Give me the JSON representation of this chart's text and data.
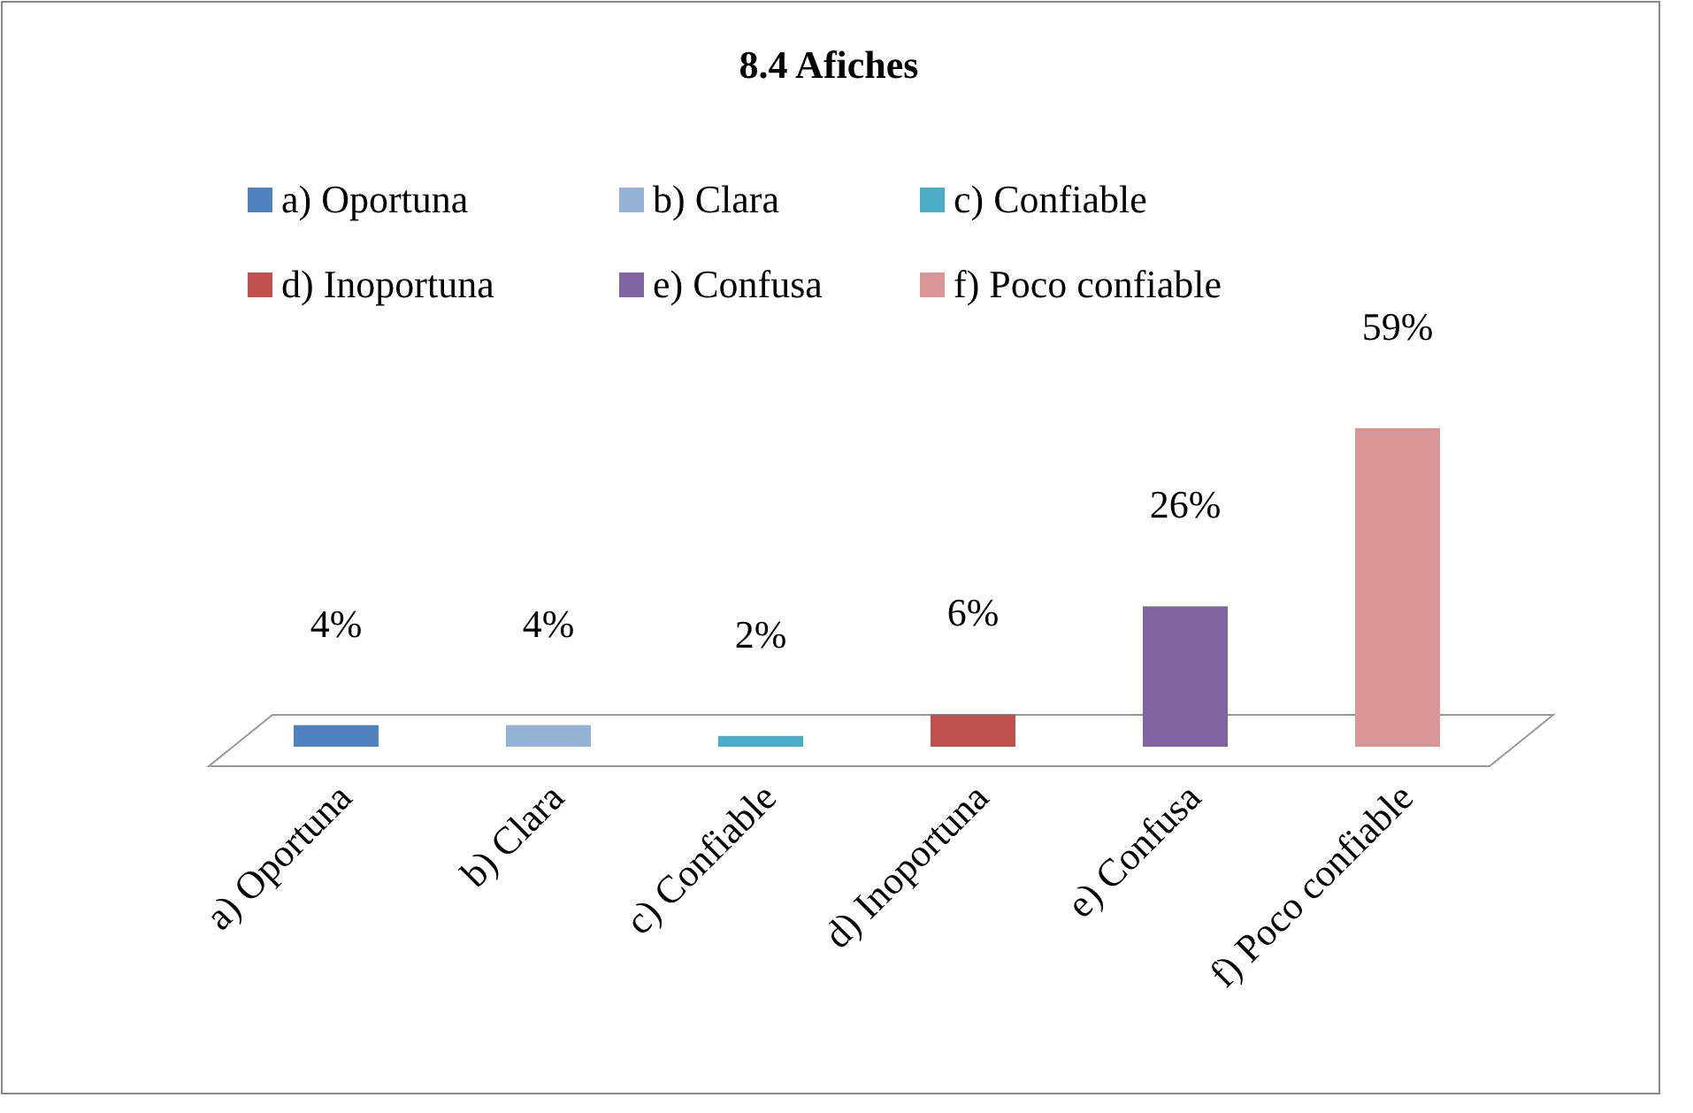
{
  "chart_data": {
    "type": "bar",
    "title": "8.4 Afiches",
    "stacked": true,
    "categories": [
      "a) Oportuna",
      "b) Clara",
      "c) Confiable",
      "d) Inoportuna",
      "e) Confusa",
      "f) Poco confiable"
    ],
    "series": [
      {
        "name": "a) Oportuna",
        "color": "#4f81bd",
        "values": [
          4,
          null,
          null,
          null,
          null,
          null
        ],
        "value_labels": [
          "4%",
          null,
          null,
          null,
          null,
          null
        ]
      },
      {
        "name": "b) Clara",
        "color": "#95b3d7",
        "values": [
          null,
          4,
          null,
          null,
          null,
          null
        ],
        "value_labels": [
          null,
          "4%",
          null,
          null,
          null,
          null
        ]
      },
      {
        "name": "c) Confiable",
        "color": "#4bacc6",
        "values": [
          null,
          null,
          2,
          null,
          null,
          null
        ],
        "value_labels": [
          null,
          null,
          "2%",
          null,
          null,
          null
        ]
      },
      {
        "name": "d) Inoportuna",
        "color": "#c0504d",
        "values": [
          null,
          null,
          null,
          6,
          null,
          null
        ],
        "value_labels": [
          null,
          null,
          null,
          "6%",
          null,
          null
        ]
      },
      {
        "name": "e) Confusa",
        "color": "#8064a2",
        "values": [
          null,
          null,
          null,
          null,
          26,
          null
        ],
        "value_labels": [
          null,
          null,
          null,
          null,
          "26%",
          null
        ]
      },
      {
        "name": "f) Poco confiable",
        "color": "#d99694",
        "values": [
          null,
          null,
          null,
          null,
          null,
          59
        ],
        "value_labels": [
          null,
          null,
          null,
          null,
          null,
          "59%"
        ]
      }
    ],
    "legend": "top"
  }
}
